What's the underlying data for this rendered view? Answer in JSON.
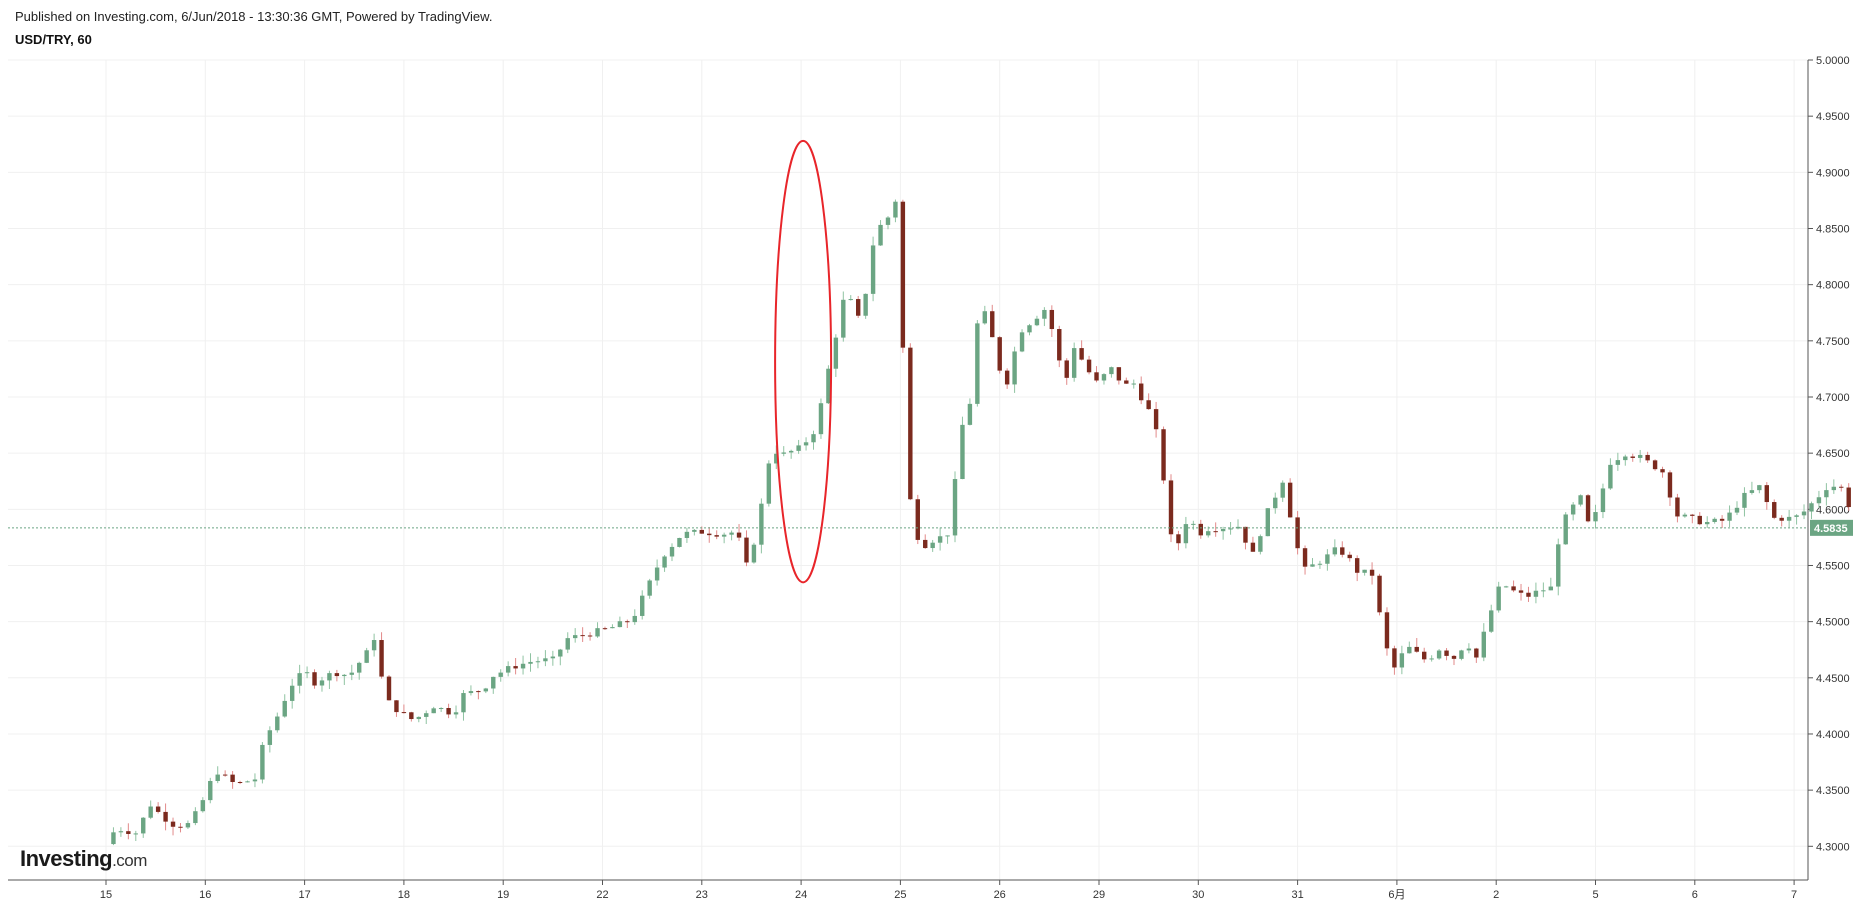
{
  "header": {
    "published_text": "Published on Investing.com, 6/Jun/2018 - 13:30:36 GMT, Powered by TradingView.",
    "symbol_text": "USD/TRY, 60"
  },
  "logo": {
    "main": "Investing",
    "suffix": ".com"
  },
  "colors": {
    "up": "#6ba583",
    "down": "#7b2a1e",
    "highlight": "#e8252a",
    "current_price_line": "#6ba583",
    "grid": "#f0f0f0",
    "axis": "#555555"
  },
  "chart_data": {
    "type": "candlestick",
    "title": "USD/TRY, 60",
    "ylim": [
      4.27,
      5.0
    ],
    "grid": true,
    "y_ticks": [
      "5.0000",
      "4.9500",
      "4.9000",
      "4.8500",
      "4.8000",
      "4.7500",
      "4.7000",
      "4.6500",
      "4.6000",
      "4.5500",
      "4.5000",
      "4.4500",
      "4.4000",
      "4.3500",
      "4.3000"
    ],
    "x_ticks": [
      "15",
      "16",
      "17",
      "18",
      "19",
      "22",
      "23",
      "24",
      "25",
      "26",
      "29",
      "30",
      "31",
      "6月",
      "2",
      "5",
      "6",
      "7"
    ],
    "current_price": 4.5835,
    "current_price_label": "4.5835",
    "highlight": {
      "shape": "ellipse",
      "x_label": "24",
      "y_range": [
        4.535,
        4.928
      ]
    },
    "close_series": [
      [
        0,
        4.302
      ],
      [
        0.1,
        4.316
      ],
      [
        0.3,
        4.312
      ],
      [
        0.45,
        4.337
      ],
      [
        0.55,
        4.328
      ],
      [
        0.7,
        4.318
      ],
      [
        0.85,
        4.32
      ],
      [
        1.0,
        4.345
      ],
      [
        1.1,
        4.368
      ],
      [
        1.3,
        4.355
      ],
      [
        1.5,
        4.36
      ],
      [
        1.55,
        4.38
      ],
      [
        1.6,
        4.395
      ],
      [
        1.75,
        4.42
      ],
      [
        1.85,
        4.442
      ],
      [
        2.0,
        4.456
      ],
      [
        2.1,
        4.446
      ],
      [
        2.3,
        4.455
      ],
      [
        2.45,
        4.452
      ],
      [
        2.65,
        4.475
      ],
      [
        2.72,
        4.49
      ],
      [
        2.8,
        4.432
      ],
      [
        2.95,
        4.42
      ],
      [
        3.1,
        4.412
      ],
      [
        3.3,
        4.425
      ],
      [
        3.5,
        4.418
      ],
      [
        3.6,
        4.435
      ],
      [
        3.8,
        4.44
      ],
      [
        3.9,
        4.452
      ],
      [
        4.1,
        4.46
      ],
      [
        4.3,
        4.465
      ],
      [
        4.5,
        4.466
      ],
      [
        4.65,
        4.485
      ],
      [
        4.9,
        4.49
      ],
      [
        5.1,
        4.495
      ],
      [
        5.3,
        4.502
      ],
      [
        5.45,
        4.53
      ],
      [
        5.6,
        4.558
      ],
      [
        5.8,
        4.578
      ],
      [
        6.0,
        4.58
      ],
      [
        6.2,
        4.578
      ],
      [
        6.35,
        4.58
      ],
      [
        6.45,
        4.55
      ],
      [
        6.55,
        4.578
      ],
      [
        6.7,
        4.655
      ],
      [
        6.8,
        4.648
      ],
      [
        7.0,
        4.655
      ],
      [
        7.15,
        4.672
      ],
      [
        7.3,
        4.735
      ],
      [
        7.45,
        4.795
      ],
      [
        7.6,
        4.765
      ],
      [
        7.75,
        4.85
      ],
      [
        7.85,
        4.855
      ],
      [
        7.95,
        4.875
      ],
      [
        8.0,
        4.875
      ],
      [
        8.05,
        4.612
      ],
      [
        8.1,
        4.608
      ],
      [
        8.2,
        4.565
      ],
      [
        8.3,
        4.572
      ],
      [
        8.4,
        4.575
      ],
      [
        8.5,
        4.58
      ],
      [
        8.6,
        4.668
      ],
      [
        8.7,
        4.695
      ],
      [
        8.8,
        4.788
      ],
      [
        8.95,
        4.745
      ],
      [
        9.05,
        4.705
      ],
      [
        9.2,
        4.758
      ],
      [
        9.35,
        4.77
      ],
      [
        9.45,
        4.778
      ],
      [
        9.55,
        4.755
      ],
      [
        9.65,
        4.708
      ],
      [
        9.75,
        4.745
      ],
      [
        9.9,
        4.722
      ],
      [
        10.0,
        4.71
      ],
      [
        10.1,
        4.728
      ],
      [
        10.25,
        4.71
      ],
      [
        10.35,
        4.712
      ],
      [
        10.5,
        4.688
      ],
      [
        10.6,
        4.662
      ],
      [
        10.75,
        4.558
      ],
      [
        10.9,
        4.595
      ],
      [
        11.0,
        4.578
      ],
      [
        11.1,
        4.583
      ],
      [
        11.25,
        4.584
      ],
      [
        11.4,
        4.585
      ],
      [
        11.55,
        4.56
      ],
      [
        11.7,
        4.598
      ],
      [
        11.85,
        4.626
      ],
      [
        11.95,
        4.585
      ],
      [
        12.05,
        4.545
      ],
      [
        12.25,
        4.555
      ],
      [
        12.4,
        4.565
      ],
      [
        12.5,
        4.558
      ],
      [
        12.6,
        4.545
      ],
      [
        12.75,
        4.542
      ],
      [
        12.85,
        4.495
      ],
      [
        12.95,
        4.455
      ],
      [
        13.1,
        4.478
      ],
      [
        13.3,
        4.465
      ],
      [
        13.45,
        4.478
      ],
      [
        13.55,
        4.465
      ],
      [
        13.7,
        4.482
      ],
      [
        13.8,
        4.468
      ],
      [
        13.95,
        4.51
      ],
      [
        14.05,
        4.535
      ],
      [
        14.15,
        4.528
      ],
      [
        14.3,
        4.522
      ],
      [
        14.45,
        4.528
      ],
      [
        14.55,
        4.53
      ],
      [
        14.65,
        4.585
      ],
      [
        14.75,
        4.6
      ],
      [
        14.85,
        4.61
      ],
      [
        14.95,
        4.58
      ],
      [
        15.15,
        4.642
      ],
      [
        15.3,
        4.65
      ],
      [
        15.45,
        4.646
      ],
      [
        15.6,
        4.638
      ],
      [
        15.7,
        4.632
      ],
      [
        15.8,
        4.595
      ],
      [
        15.95,
        4.592
      ],
      [
        16.1,
        4.588
      ],
      [
        16.3,
        4.59
      ],
      [
        16.5,
        4.612
      ],
      [
        16.65,
        4.62
      ],
      [
        16.8,
        4.592
      ],
      [
        17.0,
        4.592
      ],
      [
        17.1,
        4.598
      ],
      [
        17.25,
        4.612
      ],
      [
        17.35,
        4.622
      ],
      [
        17.5,
        4.618
      ],
      [
        17.6,
        4.59
      ],
      [
        17.68,
        4.5835
      ]
    ]
  }
}
